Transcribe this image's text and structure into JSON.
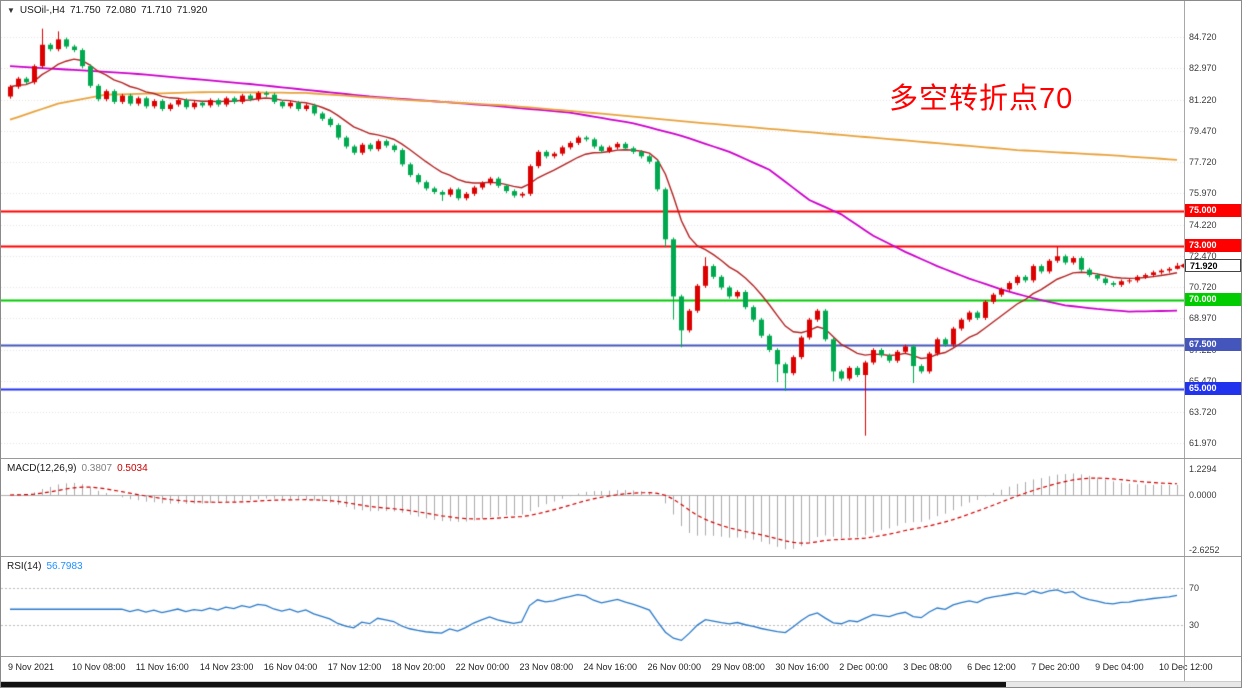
{
  "symbol_header": {
    "icon": "▼",
    "symbol": "USOil-,H4",
    "open": "71.750",
    "high": "72.080",
    "low": "71.710",
    "close": "71.920"
  },
  "annotation": {
    "text": "多空转折点70",
    "color": "#FF0000"
  },
  "indicators": {
    "macd": {
      "label": "MACD(12,26,9)",
      "value_main": "0.3807",
      "value_signal": "0.5034",
      "scale": [
        "1.2294",
        "0.0000",
        "-2.6252"
      ]
    },
    "rsi": {
      "label": "RSI(14)",
      "value": "56.7983",
      "scale": [
        "70",
        "30"
      ]
    }
  },
  "time_axis": {
    "labels": [
      "9 Nov 2021",
      "10 Nov 08:00",
      "11 Nov 16:00",
      "14 Nov 23:00",
      "16 Nov 04:00",
      "17 Nov 12:00",
      "18 Nov 20:00",
      "22 Nov 00:00",
      "23 Nov 08:00",
      "24 Nov 16:00",
      "26 Nov 00:00",
      "29 Nov 08:00",
      "30 Nov 16:00",
      "2 Dec 00:00",
      "3 Dec 08:00",
      "6 Dec 12:00",
      "7 Dec 20:00",
      "9 Dec 04:00",
      "10 Dec 12:00"
    ]
  },
  "chart_data": {
    "type": "candlestick",
    "symbol": "USOil-",
    "timeframe": "H4",
    "current_ohlc": {
      "open": 71.75,
      "high": 72.08,
      "low": 71.71,
      "close": 71.92
    },
    "price_axis_ticks": [
      84.72,
      82.97,
      81.22,
      79.47,
      77.72,
      75.97,
      74.22,
      72.47,
      70.72,
      68.97,
      67.22,
      65.47,
      63.72,
      61.97
    ],
    "price_range": [
      61.15,
      86.75
    ],
    "first_open": 81.4,
    "closes": [
      81.95,
      82.4,
      82.2,
      83.1,
      84.3,
      84.05,
      84.6,
      84.2,
      84.0,
      83.1,
      82.0,
      81.25,
      81.7,
      81.1,
      81.45,
      81.0,
      81.3,
      80.85,
      81.15,
      80.7,
      80.95,
      81.2,
      80.8,
      81.05,
      80.9,
      81.2,
      80.95,
      81.3,
      81.1,
      81.45,
      81.25,
      81.6,
      81.5,
      81.1,
      80.85,
      81.05,
      80.7,
      80.9,
      80.45,
      80.15,
      79.8,
      79.1,
      78.6,
      78.25,
      78.7,
      78.45,
      78.9,
      78.65,
      78.4,
      77.6,
      77.0,
      76.6,
      76.25,
      76.05,
      75.9,
      76.2,
      75.7,
      75.95,
      76.3,
      76.55,
      76.8,
      76.4,
      76.1,
      75.85,
      75.95,
      77.5,
      78.3,
      78.05,
      78.2,
      78.55,
      78.8,
      79.1,
      79.0,
      78.6,
      78.35,
      78.55,
      78.75,
      78.5,
      78.3,
      78.05,
      77.75,
      76.2,
      73.4,
      70.2,
      68.3,
      69.4,
      70.8,
      71.9,
      71.3,
      70.7,
      70.2,
      70.45,
      69.6,
      68.9,
      68.0,
      67.2,
      66.4,
      65.9,
      66.8,
      67.9,
      68.9,
      69.4,
      67.8,
      66.0,
      65.6,
      66.2,
      65.8,
      66.5,
      67.2,
      66.9,
      66.6,
      67.1,
      67.4,
      66.3,
      66.0,
      67.0,
      67.8,
      67.5,
      68.4,
      68.9,
      69.3,
      69.0,
      69.9,
      70.3,
      70.6,
      70.95,
      71.3,
      71.1,
      71.9,
      71.6,
      72.2,
      72.45,
      72.1,
      72.35,
      71.7,
      71.4,
      71.2,
      70.95,
      70.85,
      71.05,
      71.1,
      71.3,
      71.4,
      71.55,
      71.65,
      71.75,
      71.92
    ],
    "wick_overrides": {
      "4": [
        85.2,
        null
      ],
      "6": [
        85.05,
        null
      ],
      "54": [
        null,
        75.55
      ],
      "82": [
        null,
        72.95
      ],
      "83": [
        null,
        68.9
      ],
      "84": [
        null,
        67.35
      ],
      "87": [
        72.4,
        null
      ],
      "96": [
        null,
        65.4
      ],
      "97": [
        null,
        64.9
      ],
      "103": [
        null,
        65.45
      ],
      "107": [
        null,
        62.4
      ],
      "113": [
        null,
        65.35
      ],
      "131": [
        73.0,
        null
      ],
      "146": [
        72.08,
        71.71
      ]
    },
    "horizontal_lines": [
      {
        "price": 75.0,
        "label": "75.000",
        "color": "#FF0000"
      },
      {
        "price": 73.0,
        "label": "73.000",
        "color": "#FF0000"
      },
      {
        "price": 70.0,
        "label": "70.000",
        "color": "#00CC00"
      },
      {
        "price": 67.5,
        "label": "67.500",
        "color": "#4455BB"
      },
      {
        "price": 65.0,
        "label": "65.000",
        "color": "#2233EE"
      }
    ],
    "current_price": {
      "value": 71.92,
      "label": "71.920"
    },
    "moving_averages": [
      {
        "name": "fast-ma",
        "type": "ema",
        "period": 10,
        "color": "#B22222"
      },
      {
        "name": "mid-ma",
        "type": "points",
        "color": "#CC00CC",
        "points": [
          [
            0,
            83.1
          ],
          [
            15,
            82.7
          ],
          [
            30,
            82.1
          ],
          [
            45,
            81.4
          ],
          [
            60,
            80.9
          ],
          [
            70,
            80.5
          ],
          [
            78,
            79.9
          ],
          [
            84,
            79.2
          ],
          [
            90,
            78.3
          ],
          [
            95,
            77.3
          ],
          [
            100,
            75.6
          ],
          [
            104,
            74.8
          ],
          [
            108,
            73.6
          ],
          [
            112,
            72.7
          ],
          [
            116,
            71.9
          ],
          [
            120,
            71.2
          ],
          [
            124,
            70.6
          ],
          [
            128,
            70.1
          ],
          [
            132,
            69.7
          ],
          [
            136,
            69.5
          ],
          [
            140,
            69.35
          ],
          [
            146,
            69.4
          ]
        ]
      },
      {
        "name": "slow-ma",
        "type": "points",
        "color": "#E8A33D",
        "points": [
          [
            0,
            80.1
          ],
          [
            6,
            81.0
          ],
          [
            12,
            81.5
          ],
          [
            25,
            81.65
          ],
          [
            37,
            81.6
          ],
          [
            50,
            81.2
          ],
          [
            62,
            80.9
          ],
          [
            75,
            80.4
          ],
          [
            87,
            79.9
          ],
          [
            100,
            79.4
          ],
          [
            113,
            78.9
          ],
          [
            126,
            78.4
          ],
          [
            138,
            78.1
          ],
          [
            146,
            77.85
          ]
        ]
      }
    ],
    "macd": {
      "fast": 12,
      "slow": 26,
      "signal_period": 9,
      "scale_top": 1.2294,
      "scale_bottom": -2.6252,
      "current_main": 0.3807,
      "current_signal": 0.5034
    },
    "rsi": {
      "period": 14,
      "levels": [
        70,
        30
      ],
      "current": 56.7983
    },
    "colors": {
      "up": "#DD0000",
      "down": "#00A94F",
      "grid": "#E5E5E5",
      "macd_hist": "#ABABAB",
      "macd_signal": "#D00000",
      "macd_zero": "#B0B0B0",
      "rsi_line": "#2979C8",
      "rsi_level": "#BBBBBB",
      "arrow": "#CC0000"
    }
  }
}
